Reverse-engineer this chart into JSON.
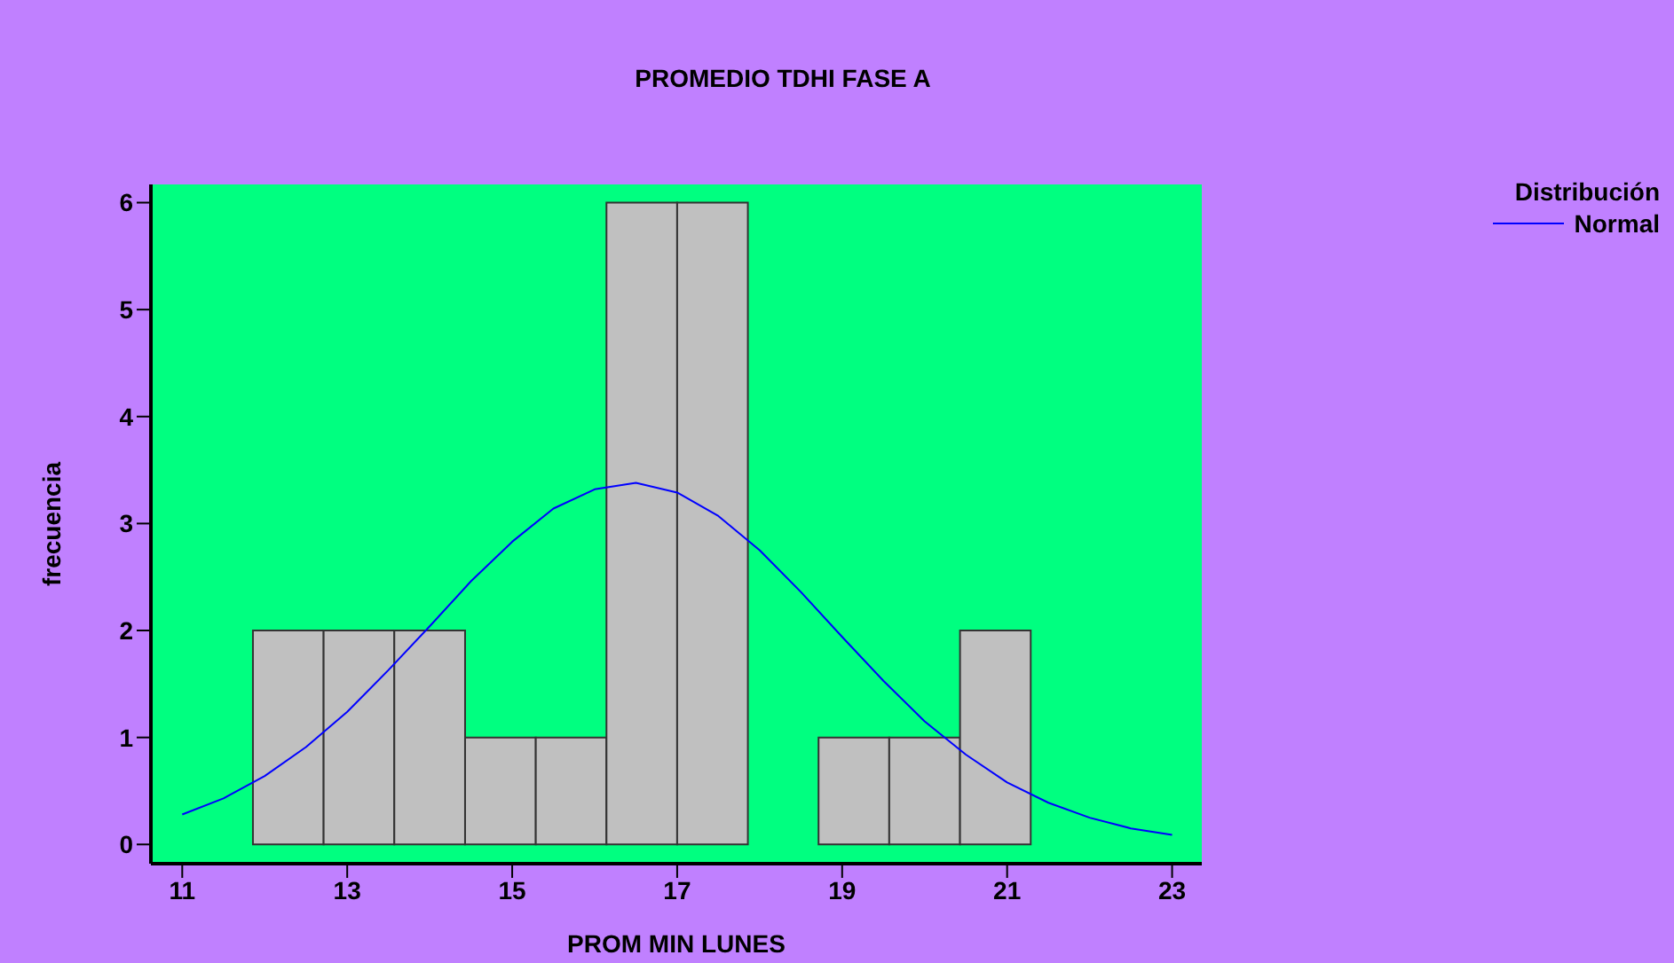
{
  "chart_data": {
    "type": "histogram",
    "title": "PROMEDIO TDHI FASE A",
    "xlabel": "PROM MIN LUNES",
    "ylabel": "frecuencia",
    "legend_title": "Distribución",
    "legend": "top right",
    "grid": false,
    "xlim": [
      10.62,
      23.36
    ],
    "xticks": [
      11,
      13,
      15,
      17,
      19,
      21,
      23
    ],
    "ylim": [
      -0.18,
      6.17
    ],
    "yticks": [
      0,
      1,
      2,
      3,
      4,
      5,
      6
    ],
    "series": [
      {
        "color": "#c0c0c0",
        "bins": [
          11,
          11.857,
          12.714,
          13.571,
          14.429,
          15.286,
          16.143,
          17,
          17.857,
          18.714,
          19.571,
          20.429,
          21.286,
          22.143,
          23
        ],
        "values": [
          0,
          2,
          2,
          2,
          1,
          1,
          6,
          6,
          0,
          1,
          1,
          2,
          0,
          0
        ]
      },
      {
        "type": "line",
        "name": "Normal",
        "color": "#0000ff",
        "x": [
          11,
          11.5,
          12,
          12.5,
          13,
          13.5,
          14,
          14.5,
          15,
          15.5,
          16,
          16.5,
          17,
          17.5,
          18,
          18.5,
          19,
          19.5,
          20,
          20.5,
          21,
          21.5,
          22,
          22.5,
          23
        ],
        "values": [
          0.28,
          0.43,
          0.64,
          0.91,
          1.24,
          1.63,
          2.04,
          2.46,
          2.83,
          3.14,
          3.32,
          3.38,
          3.29,
          3.07,
          2.75,
          2.36,
          1.94,
          1.53,
          1.15,
          0.84,
          0.58,
          0.39,
          0.25,
          0.15,
          0.09
        ]
      }
    ]
  }
}
